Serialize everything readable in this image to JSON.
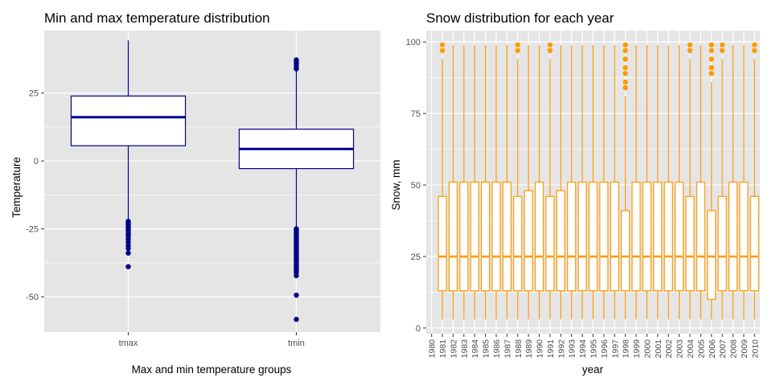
{
  "chart_data": [
    {
      "type": "boxplot",
      "title": "Min and max temperature distribution",
      "xlabel": "Max and min temperature groups",
      "ylabel": "Temperature",
      "ylim": [
        -63,
        48
      ],
      "yticks": [
        -50,
        -25,
        0,
        25
      ],
      "grid": true,
      "colors": {
        "box": "#00008b",
        "fill": "#ffffff",
        "panel": "#e5e5e5",
        "grid": "#ffffff"
      },
      "categories": [
        "tmax",
        "tmin"
      ],
      "boxes": [
        {
          "label": "tmax",
          "whisker_low": -22,
          "q1": 5.6,
          "median": 16.1,
          "q3": 23.9,
          "whisker_high": 44.4,
          "outliers": [
            -22.2,
            -22.8,
            -23.3,
            -23.9,
            -24.4,
            -25.0,
            -25.6,
            -26.1,
            -26.7,
            -27.2,
            -27.8,
            -28.9,
            -30.0,
            -31.1,
            -32.2,
            -33.9,
            -38.9
          ]
        },
        {
          "label": "tmin",
          "whisker_low": -24.4,
          "q1": -2.8,
          "median": 4.4,
          "q3": 11.7,
          "whisker_high": 33.3,
          "outliers": [
            -25,
            -25.6,
            -26.1,
            -26.7,
            -27.2,
            -27.8,
            -28.3,
            -28.9,
            -29.4,
            -30,
            -30.6,
            -31.1,
            -31.7,
            -32.2,
            -32.8,
            -33.3,
            -33.9,
            -34.4,
            -35,
            -35.6,
            -36.1,
            -36.7,
            -37.2,
            -37.8,
            -38.3,
            -38.9,
            -39.4,
            -40,
            -40.6,
            -41.1,
            -42.2,
            -49.4,
            -58.3,
            33.9,
            34.4,
            35,
            35.6,
            36.1,
            36.7,
            37.2
          ]
        }
      ]
    },
    {
      "type": "boxplot",
      "title": "Snow distribution for each year",
      "xlabel": "year",
      "ylabel": "Snow, mm",
      "ylim": [
        -2,
        104
      ],
      "yticks": [
        0,
        25,
        50,
        75,
        100
      ],
      "grid": true,
      "colors": {
        "box": "#ff9900",
        "fill": "#ffffff",
        "panel": "#e5e5e5",
        "grid": "#ffffff"
      },
      "categories": [
        "1980",
        "1981",
        "1982",
        "1983",
        "1984",
        "1985",
        "1986",
        "1987",
        "1988",
        "1989",
        "1990",
        "1991",
        "1992",
        "1993",
        "1994",
        "1995",
        "1996",
        "1997",
        "1998",
        "1999",
        "2000",
        "2001",
        "2002",
        "2003",
        "2004",
        "2005",
        "2006",
        "2007",
        "2008",
        "2009",
        "2010"
      ],
      "boxes": [
        {
          "label": "1981",
          "whisker_low": 3,
          "q1": 13,
          "median": 25,
          "q3": 46,
          "whisker_high": 94,
          "outliers": [
            97,
            99
          ]
        },
        {
          "label": "1982",
          "whisker_low": 3,
          "q1": 13,
          "median": 25,
          "q3": 51,
          "whisker_high": 99,
          "outliers": []
        },
        {
          "label": "1983",
          "whisker_low": 3,
          "q1": 13,
          "median": 25,
          "q3": 51,
          "whisker_high": 99,
          "outliers": []
        },
        {
          "label": "1984",
          "whisker_low": 3,
          "q1": 13,
          "median": 25,
          "q3": 51,
          "whisker_high": 99,
          "outliers": []
        },
        {
          "label": "1985",
          "whisker_low": 3,
          "q1": 13,
          "median": 25,
          "q3": 51,
          "whisker_high": 99,
          "outliers": []
        },
        {
          "label": "1986",
          "whisker_low": 3,
          "q1": 13,
          "median": 25,
          "q3": 51,
          "whisker_high": 99,
          "outliers": []
        },
        {
          "label": "1987",
          "whisker_low": 3,
          "q1": 13,
          "median": 25,
          "q3": 51,
          "whisker_high": 99,
          "outliers": []
        },
        {
          "label": "1988",
          "whisker_low": 3,
          "q1": 13,
          "median": 25,
          "q3": 46,
          "whisker_high": 94,
          "outliers": [
            97,
            99
          ]
        },
        {
          "label": "1989",
          "whisker_low": 3,
          "q1": 13,
          "median": 25,
          "q3": 48,
          "whisker_high": 99,
          "outliers": []
        },
        {
          "label": "1990",
          "whisker_low": 3,
          "q1": 13,
          "median": 25,
          "q3": 51,
          "whisker_high": 99,
          "outliers": []
        },
        {
          "label": "1991",
          "whisker_low": 3,
          "q1": 13,
          "median": 25,
          "q3": 46,
          "whisker_high": 94,
          "outliers": [
            97,
            99
          ]
        },
        {
          "label": "1992",
          "whisker_low": 3,
          "q1": 13,
          "median": 25,
          "q3": 48,
          "whisker_high": 99,
          "outliers": []
        },
        {
          "label": "1993",
          "whisker_low": 3,
          "q1": 13,
          "median": 25,
          "q3": 51,
          "whisker_high": 99,
          "outliers": []
        },
        {
          "label": "1994",
          "whisker_low": 3,
          "q1": 13,
          "median": 25,
          "q3": 51,
          "whisker_high": 99,
          "outliers": []
        },
        {
          "label": "1995",
          "whisker_low": 3,
          "q1": 13,
          "median": 25,
          "q3": 51,
          "whisker_high": 99,
          "outliers": []
        },
        {
          "label": "1996",
          "whisker_low": 3,
          "q1": 13,
          "median": 25,
          "q3": 51,
          "whisker_high": 99,
          "outliers": []
        },
        {
          "label": "1997",
          "whisker_low": 3,
          "q1": 13,
          "median": 25,
          "q3": 51,
          "whisker_high": 99,
          "outliers": []
        },
        {
          "label": "1998",
          "whisker_low": 3,
          "q1": 13,
          "median": 25,
          "q3": 41,
          "whisker_high": 81,
          "outliers": [
            84,
            86,
            89,
            91,
            94,
            97,
            99
          ]
        },
        {
          "label": "1999",
          "whisker_low": 3,
          "q1": 13,
          "median": 25,
          "q3": 51,
          "whisker_high": 99,
          "outliers": []
        },
        {
          "label": "2000",
          "whisker_low": 3,
          "q1": 13,
          "median": 25,
          "q3": 51,
          "whisker_high": 99,
          "outliers": []
        },
        {
          "label": "2001",
          "whisker_low": 3,
          "q1": 13,
          "median": 25,
          "q3": 51,
          "whisker_high": 99,
          "outliers": []
        },
        {
          "label": "2002",
          "whisker_low": 3,
          "q1": 13,
          "median": 25,
          "q3": 51,
          "whisker_high": 99,
          "outliers": []
        },
        {
          "label": "2003",
          "whisker_low": 3,
          "q1": 13,
          "median": 25,
          "q3": 51,
          "whisker_high": 99,
          "outliers": []
        },
        {
          "label": "2004",
          "whisker_low": 3,
          "q1": 13,
          "median": 25,
          "q3": 46,
          "whisker_high": 94,
          "outliers": [
            97,
            99
          ]
        },
        {
          "label": "2005",
          "whisker_low": 3,
          "q1": 13,
          "median": 25,
          "q3": 51,
          "whisker_high": 99,
          "outliers": []
        },
        {
          "label": "2006",
          "whisker_low": 3,
          "q1": 10,
          "median": 25,
          "q3": 41,
          "whisker_high": 86,
          "outliers": [
            89,
            91,
            94,
            97,
            99
          ]
        },
        {
          "label": "2007",
          "whisker_low": 3,
          "q1": 13,
          "median": 25,
          "q3": 46,
          "whisker_high": 94,
          "outliers": [
            97,
            99
          ]
        },
        {
          "label": "2008",
          "whisker_low": 3,
          "q1": 13,
          "median": 25,
          "q3": 51,
          "whisker_high": 99,
          "outliers": []
        },
        {
          "label": "2009",
          "whisker_low": 3,
          "q1": 13,
          "median": 25,
          "q3": 51,
          "whisker_high": 99,
          "outliers": []
        },
        {
          "label": "2010",
          "whisker_low": 3,
          "q1": 13,
          "median": 25,
          "q3": 46,
          "whisker_high": 94,
          "outliers": [
            97,
            99
          ]
        }
      ]
    }
  ]
}
